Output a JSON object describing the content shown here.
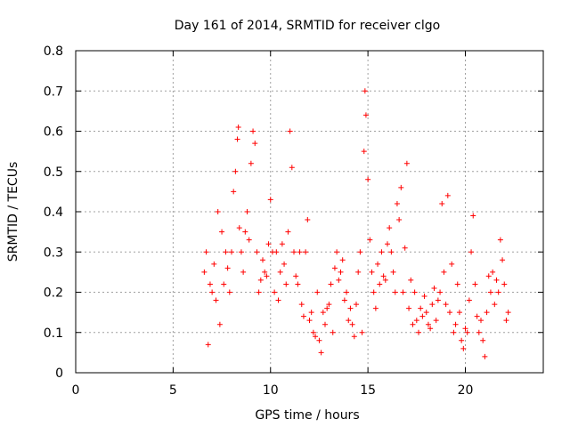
{
  "chart_data": {
    "type": "scatter",
    "title": "Day 161 of 2014, SRMTID for receiver clgo",
    "xlabel": "GPS time / hours",
    "ylabel": "SRMTID / TECUs",
    "xlim": [
      0,
      24
    ],
    "ylim": [
      0,
      0.8
    ],
    "xticks": [
      0,
      5,
      10,
      15,
      20
    ],
    "yticks": [
      0,
      0.1,
      0.2,
      0.3,
      0.4,
      0.5,
      0.6,
      0.7,
      0.8
    ],
    "xtick_labels": [
      "0",
      "5",
      "10",
      "15",
      "20"
    ],
    "ytick_labels": [
      "0",
      "0.1",
      "0.2",
      "0.3",
      "0.4",
      "0.5",
      "0.6",
      "0.7",
      "0.8"
    ],
    "grid": true,
    "marker": "+",
    "color": "#ff0000",
    "series": [
      {
        "name": "SRMTID",
        "x": [
          6.6,
          6.7,
          6.8,
          6.9,
          7.0,
          7.1,
          7.2,
          7.3,
          7.4,
          7.5,
          7.6,
          7.7,
          7.8,
          7.9,
          8.0,
          8.1,
          8.2,
          8.3,
          8.35,
          8.4,
          8.5,
          8.6,
          8.7,
          8.8,
          8.9,
          9.0,
          9.1,
          9.2,
          9.3,
          9.4,
          9.5,
          9.6,
          9.7,
          9.8,
          9.9,
          10.0,
          10.1,
          10.2,
          10.3,
          10.4,
          10.5,
          10.6,
          10.7,
          10.8,
          10.9,
          11.0,
          11.1,
          11.2,
          11.3,
          11.4,
          11.5,
          11.6,
          11.7,
          11.8,
          11.9,
          12.0,
          12.1,
          12.2,
          12.3,
          12.4,
          12.5,
          12.6,
          12.7,
          12.8,
          12.9,
          13.0,
          13.1,
          13.2,
          13.3,
          13.4,
          13.5,
          13.6,
          13.7,
          13.8,
          13.9,
          14.0,
          14.1,
          14.2,
          14.3,
          14.4,
          14.5,
          14.6,
          14.7,
          14.8,
          14.85,
          14.9,
          15.0,
          15.1,
          15.2,
          15.3,
          15.4,
          15.5,
          15.6,
          15.7,
          15.8,
          15.9,
          16.0,
          16.1,
          16.2,
          16.3,
          16.4,
          16.5,
          16.6,
          16.7,
          16.8,
          16.9,
          17.0,
          17.1,
          17.2,
          17.3,
          17.4,
          17.5,
          17.6,
          17.7,
          17.8,
          17.9,
          18.0,
          18.1,
          18.2,
          18.3,
          18.4,
          18.5,
          18.6,
          18.7,
          18.8,
          18.9,
          19.0,
          19.1,
          19.2,
          19.3,
          19.4,
          19.5,
          19.6,
          19.7,
          19.8,
          19.9,
          20.0,
          20.1,
          20.2,
          20.3,
          20.4,
          20.5,
          20.6,
          20.7,
          20.8,
          20.9,
          21.0,
          21.1,
          21.2,
          21.3,
          21.4,
          21.5,
          21.6,
          21.7,
          21.8,
          21.9,
          22.0,
          22.1,
          22.2
        ],
        "y": [
          0.25,
          0.3,
          0.07,
          0.22,
          0.2,
          0.27,
          0.18,
          0.4,
          0.12,
          0.35,
          0.22,
          0.3,
          0.26,
          0.2,
          0.3,
          0.45,
          0.5,
          0.58,
          0.61,
          0.36,
          0.3,
          0.25,
          0.35,
          0.4,
          0.33,
          0.52,
          0.6,
          0.57,
          0.3,
          0.2,
          0.23,
          0.28,
          0.25,
          0.24,
          0.32,
          0.43,
          0.3,
          0.2,
          0.3,
          0.18,
          0.25,
          0.32,
          0.27,
          0.22,
          0.35,
          0.6,
          0.51,
          0.3,
          0.24,
          0.22,
          0.3,
          0.17,
          0.14,
          0.3,
          0.38,
          0.13,
          0.15,
          0.1,
          0.09,
          0.2,
          0.08,
          0.05,
          0.15,
          0.12,
          0.16,
          0.17,
          0.22,
          0.1,
          0.26,
          0.3,
          0.23,
          0.25,
          0.28,
          0.18,
          0.2,
          0.13,
          0.16,
          0.12,
          0.09,
          0.17,
          0.25,
          0.3,
          0.1,
          0.55,
          0.7,
          0.64,
          0.48,
          0.33,
          0.25,
          0.2,
          0.16,
          0.27,
          0.22,
          0.3,
          0.24,
          0.23,
          0.32,
          0.36,
          0.3,
          0.25,
          0.2,
          0.42,
          0.38,
          0.46,
          0.2,
          0.31,
          0.52,
          0.16,
          0.23,
          0.12,
          0.2,
          0.13,
          0.1,
          0.16,
          0.14,
          0.19,
          0.15,
          0.12,
          0.11,
          0.17,
          0.21,
          0.13,
          0.18,
          0.2,
          0.42,
          0.25,
          0.17,
          0.44,
          0.15,
          0.27,
          0.1,
          0.12,
          0.22,
          0.15,
          0.08,
          0.06,
          0.11,
          0.1,
          0.18,
          0.3,
          0.39,
          0.22,
          0.14,
          0.1,
          0.13,
          0.08,
          0.04,
          0.15,
          0.24,
          0.2,
          0.25,
          0.17,
          0.23,
          0.2,
          0.33,
          0.28,
          0.22,
          0.13,
          0.15
        ]
      }
    ]
  }
}
